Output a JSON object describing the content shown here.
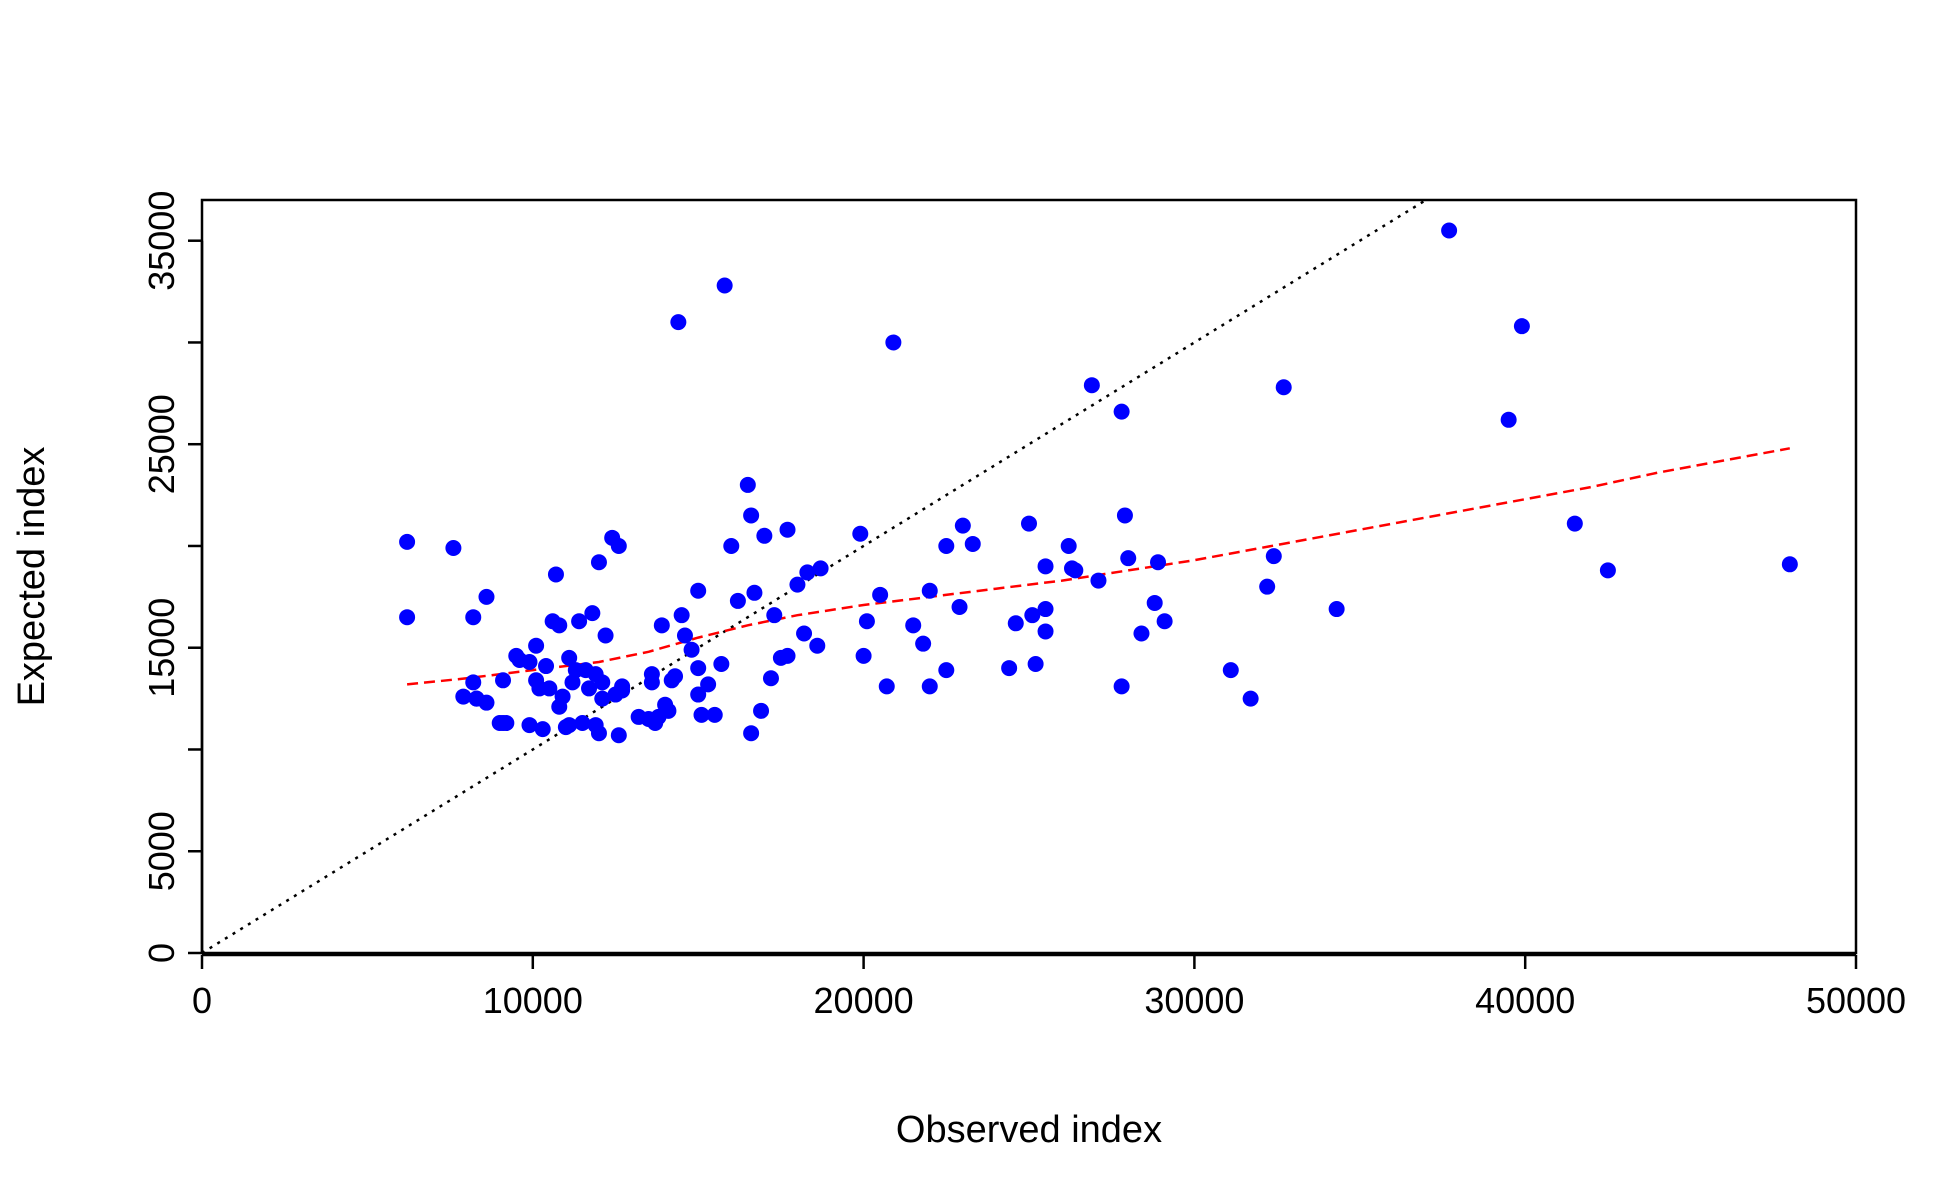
{
  "chart_data": {
    "type": "scatter",
    "xlabel": "Observed index",
    "ylabel": "Expected index",
    "xlim": [
      0,
      50000
    ],
    "ylim": [
      0,
      37000
    ],
    "x_ticks": [
      0,
      10000,
      20000,
      30000,
      40000,
      50000
    ],
    "y_ticks": [
      0,
      5000,
      15000,
      25000,
      35000
    ],
    "y_minor_ticks": [
      10000,
      20000,
      30000
    ],
    "x_tick_labels": [
      "0",
      "10000",
      "20000",
      "30000",
      "40000",
      "50000"
    ],
    "y_tick_labels": [
      "0",
      "5000",
      "15000",
      "25000",
      "35000"
    ],
    "grid": false,
    "colors": {
      "points": "#0000ff",
      "smooth": "#ff0000",
      "identity": "#000000"
    },
    "identity_line": {
      "style": "dotted",
      "x": [
        0,
        37000
      ],
      "y": [
        0,
        37000
      ]
    },
    "smooth_line": {
      "style": "dashed",
      "x": [
        6200,
        8000,
        10000,
        12000,
        13500,
        15000,
        16500,
        18000,
        20000,
        22000,
        24000,
        26000,
        28000,
        30000,
        32000,
        34000,
        36000,
        38000,
        40000,
        42000,
        44000,
        46000,
        48000
      ],
      "y": [
        13200,
        13500,
        13900,
        14300,
        14800,
        15500,
        16100,
        16600,
        17100,
        17500,
        17900,
        18300,
        18800,
        19300,
        19900,
        20500,
        21100,
        21700,
        22300,
        22900,
        23600,
        24200,
        24800
      ]
    },
    "points": {
      "x": [
        6200,
        6200,
        7600,
        7900,
        8200,
        8200,
        8300,
        8300,
        8600,
        8600,
        9000,
        9100,
        9100,
        9200,
        9500,
        9600,
        9900,
        9900,
        10100,
        10100,
        10200,
        10300,
        10400,
        10500,
        10600,
        10700,
        10800,
        10800,
        10900,
        11000,
        11100,
        11100,
        11200,
        11300,
        11400,
        11500,
        11600,
        11700,
        11800,
        11900,
        11900,
        12000,
        12000,
        12100,
        12100,
        12200,
        12400,
        12500,
        12600,
        12600,
        12700,
        12700,
        13200,
        13500,
        13600,
        13600,
        13700,
        13800,
        13900,
        14000,
        14100,
        14200,
        14300,
        14400,
        14500,
        14600,
        14800,
        15000,
        15000,
        15000,
        15100,
        15300,
        15500,
        15700,
        15800,
        16000,
        16200,
        16500,
        16600,
        16600,
        16700,
        16900,
        17000,
        17200,
        17300,
        17500,
        17700,
        17700,
        18000,
        18200,
        18300,
        18600,
        18700,
        19900,
        20000,
        20100,
        20500,
        20700,
        20900,
        21500,
        21800,
        22000,
        22000,
        22500,
        22500,
        22900,
        23000,
        23300,
        24400,
        24600,
        25000,
        25100,
        25200,
        25500,
        25500,
        25500,
        26200,
        26300,
        26400,
        26900,
        27100,
        27800,
        27800,
        27900,
        28000,
        28400,
        28800,
        28900,
        29100,
        31100,
        31700,
        32200,
        32400,
        32700,
        34300,
        37700,
        39500,
        39900,
        41500,
        42500,
        48000
      ],
      "y": [
        16500,
        20200,
        19900,
        12600,
        13300,
        16500,
        12500,
        12500,
        17500,
        12300,
        11300,
        13400,
        11300,
        11300,
        14600,
        14400,
        11200,
        14300,
        15100,
        13400,
        13000,
        11000,
        14100,
        13000,
        16300,
        18600,
        12100,
        16100,
        12600,
        11100,
        14500,
        11200,
        13300,
        13900,
        16300,
        11300,
        13900,
        13000,
        16700,
        11200,
        13700,
        19200,
        10800,
        13300,
        12500,
        15600,
        20400,
        12700,
        10700,
        20000,
        13100,
        12900,
        11600,
        11500,
        13700,
        13300,
        11300,
        11600,
        16100,
        12200,
        11900,
        13400,
        13600,
        31000,
        16600,
        15600,
        14900,
        17800,
        12700,
        14000,
        11700,
        13200,
        11700,
        14200,
        32800,
        20000,
        17300,
        23000,
        10800,
        21500,
        17700,
        11900,
        20500,
        13500,
        16600,
        14500,
        20800,
        14600,
        18100,
        15700,
        18700,
        15100,
        18900,
        20600,
        14600,
        16300,
        17600,
        13100,
        30000,
        16100,
        15200,
        13100,
        17800,
        20000,
        13900,
        17000,
        21000,
        20100,
        14000,
        16200,
        21100,
        16600,
        14200,
        19000,
        16900,
        15800,
        20000,
        18900,
        18800,
        27900,
        18300,
        26600,
        13100,
        21500,
        19400,
        15700,
        17200,
        19200,
        16300,
        13900,
        12500,
        18000,
        19500,
        27800,
        16900,
        35500,
        26200,
        30800,
        21100,
        18800,
        19100
      ]
    }
  }
}
